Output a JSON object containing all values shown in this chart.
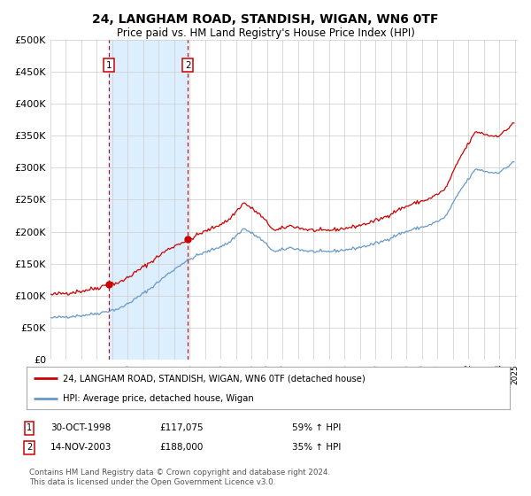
{
  "title": "24, LANGHAM ROAD, STANDISH, WIGAN, WN6 0TF",
  "subtitle": "Price paid vs. HM Land Registry's House Price Index (HPI)",
  "sale1_price": 117075,
  "sale2_price": 188000,
  "legend1": "24, LANGHAM ROAD, STANDISH, WIGAN, WN6 0TF (detached house)",
  "legend2": "HPI: Average price, detached house, Wigan",
  "sale1_row": "30-OCT-1998",
  "sale1_val": "£117,075",
  "sale1_pct": "59% ↑ HPI",
  "sale2_row": "14-NOV-2003",
  "sale2_val": "£188,000",
  "sale2_pct": "35% ↑ HPI",
  "footer": "Contains HM Land Registry data © Crown copyright and database right 2024.\nThis data is licensed under the Open Government Licence v3.0.",
  "red_color": "#cc0000",
  "blue_color": "#6699cc",
  "shade_color": "#ddeeff",
  "grid_color": "#cccccc",
  "bg_color": "#ffffff",
  "ylim": [
    0,
    500000
  ],
  "yticks": [
    0,
    50000,
    100000,
    150000,
    200000,
    250000,
    300000,
    350000,
    400000,
    450000,
    500000
  ]
}
